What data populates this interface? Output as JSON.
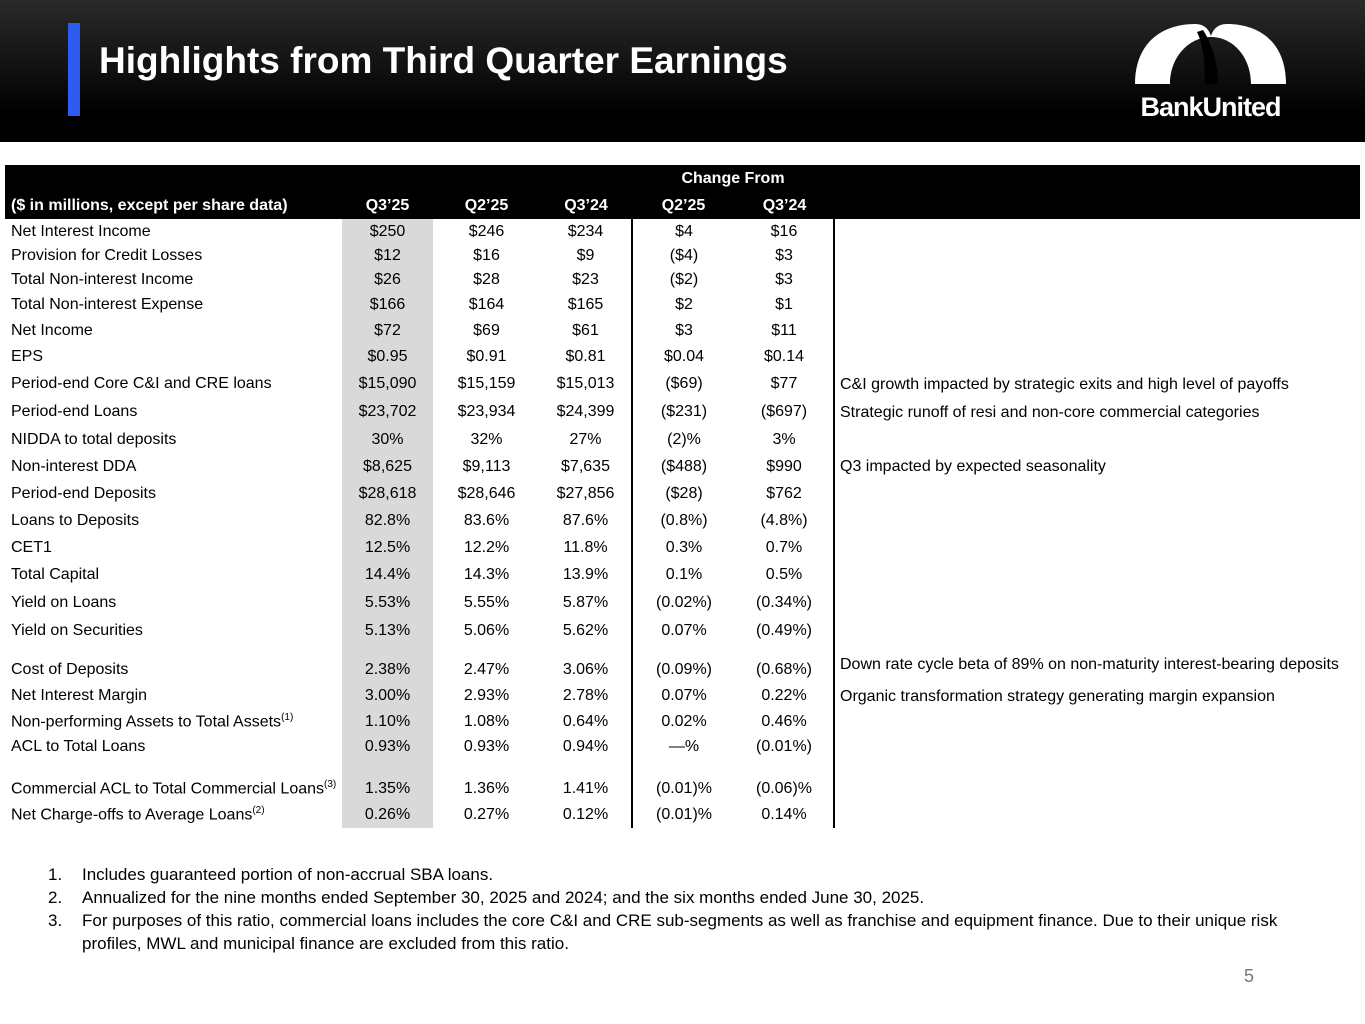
{
  "header": {
    "title": "Highlights from Third Quarter Earnings",
    "logo_text": "BankUnited"
  },
  "table": {
    "change_from": "Change From",
    "columns": [
      "($ in millions, except per share data)",
      "Q3’25",
      "Q2’25",
      "Q3’24",
      "Q2’25",
      "Q3’24"
    ],
    "rows": [
      {
        "label": "Net Interest Income",
        "v": [
          "$250",
          "$246",
          "$234",
          "$4",
          "$16"
        ],
        "comment": ""
      },
      {
        "label": "Provision for Credit Losses",
        "v": [
          "$12",
          "$16",
          "$9",
          "($4)",
          "$3"
        ],
        "comment": ""
      },
      {
        "label": "Total Non-interest Income",
        "v": [
          "$26",
          "$28",
          "$23",
          "($2)",
          "$3"
        ],
        "comment": ""
      },
      {
        "label": "Total Non-interest Expense",
        "v": [
          "$166",
          "$164",
          "$165",
          "$2",
          "$1"
        ],
        "comment": ""
      },
      {
        "label": "Net Income",
        "v": [
          "$72",
          "$69",
          "$61",
          "$3",
          "$11"
        ],
        "comment": ""
      },
      {
        "label": "EPS",
        "v": [
          "$0.95",
          "$0.91",
          "$0.81",
          "$0.04",
          "$0.14"
        ],
        "comment": ""
      },
      {
        "label": "Period-end Core C&I and CRE loans",
        "v": [
          "$15,090",
          "$15,159",
          "$15,013",
          "($69)",
          "$77"
        ],
        "comment": "C&I growth impacted by strategic exits and high level of payoffs"
      },
      {
        "label": "Period-end Loans",
        "v": [
          "$23,702",
          "$23,934",
          "$24,399",
          "($231)",
          "($697)"
        ],
        "comment": "Strategic runoff of resi and non-core commercial categories"
      },
      {
        "label": "NIDDA to total deposits",
        "v": [
          "30%",
          "32%",
          "27%",
          "(2)%",
          "3%"
        ],
        "comment": ""
      },
      {
        "label": "Non-interest DDA",
        "v": [
          "$8,625",
          "$9,113",
          "$7,635",
          "($488)",
          "$990"
        ],
        "comment": "Q3 impacted by expected seasonality"
      },
      {
        "label": "Period-end Deposits",
        "v": [
          "$28,618",
          "$28,646",
          "$27,856",
          "($28)",
          "$762"
        ],
        "comment": ""
      },
      {
        "label": "Loans to Deposits",
        "v": [
          "82.8%",
          "83.6%",
          "87.6%",
          "(0.8%)",
          "(4.8%)"
        ],
        "comment": ""
      },
      {
        "label": "CET1",
        "v": [
          "12.5%",
          "12.2%",
          "11.8%",
          "0.3%",
          "0.7%"
        ],
        "comment": ""
      },
      {
        "label": "Total Capital",
        "v": [
          "14.4%",
          "14.3%",
          "13.9%",
          "0.1%",
          "0.5%"
        ],
        "comment": ""
      },
      {
        "label": "Yield on Loans",
        "v": [
          "5.53%",
          "5.55%",
          "5.87%",
          "(0.02%)",
          "(0.34%)"
        ],
        "comment": ""
      },
      {
        "label": "Yield on Securities",
        "v": [
          "5.13%",
          "5.06%",
          "5.62%",
          "0.07%",
          "(0.49%)"
        ],
        "comment": ""
      },
      {
        "label": "Cost of Deposits",
        "v": [
          "2.38%",
          "2.47%",
          "3.06%",
          "(0.09%)",
          "(0.68%)"
        ],
        "comment": "Down rate cycle beta of 89% on non-maturity interest-bearing deposits"
      },
      {
        "label": "Net Interest Margin",
        "v": [
          "3.00%",
          "2.93%",
          "2.78%",
          "0.07%",
          "0.22%"
        ],
        "comment": "Organic transformation strategy generating margin expansion"
      },
      {
        "label": "Non-performing Assets to Total Assets",
        "sup": "(1)",
        "v": [
          "1.10%",
          "1.08%",
          "0.64%",
          "0.02%",
          "0.46%"
        ],
        "comment": ""
      },
      {
        "label": "ACL to Total Loans",
        "v": [
          "0.93%",
          "0.93%",
          "0.94%",
          "—%",
          "(0.01%)"
        ],
        "comment": ""
      },
      {
        "label": "Commercial ACL to Total Commercial Loans",
        "sup": "(3)",
        "v": [
          "1.35%",
          "1.36%",
          "1.41%",
          "(0.01)%",
          "(0.06)%"
        ],
        "comment": ""
      },
      {
        "label": "Net Charge-offs to Average Loans",
        "sup": "(2)",
        "v": [
          "0.26%",
          "0.27%",
          "0.12%",
          "(0.01)%",
          "0.14%"
        ],
        "comment": ""
      }
    ]
  },
  "notes": [
    {
      "n": "1.",
      "t": "Includes guaranteed portion of non-accrual SBA loans."
    },
    {
      "n": "2.",
      "t": "Annualized for the nine months ended September 30, 2025 and 2024; and the six months ended June 30, 2025."
    },
    {
      "n": "3.",
      "t": "For purposes of this ratio, commercial loans includes the core C&I and CRE sub-segments as well as franchise and equipment finance. Due to their unique risk profiles, MWL and municipal finance are excluded from this ratio."
    }
  ],
  "page_number": "5",
  "colors": {
    "accent": "#2f5cf0",
    "current_col": "#d9d9d9"
  }
}
